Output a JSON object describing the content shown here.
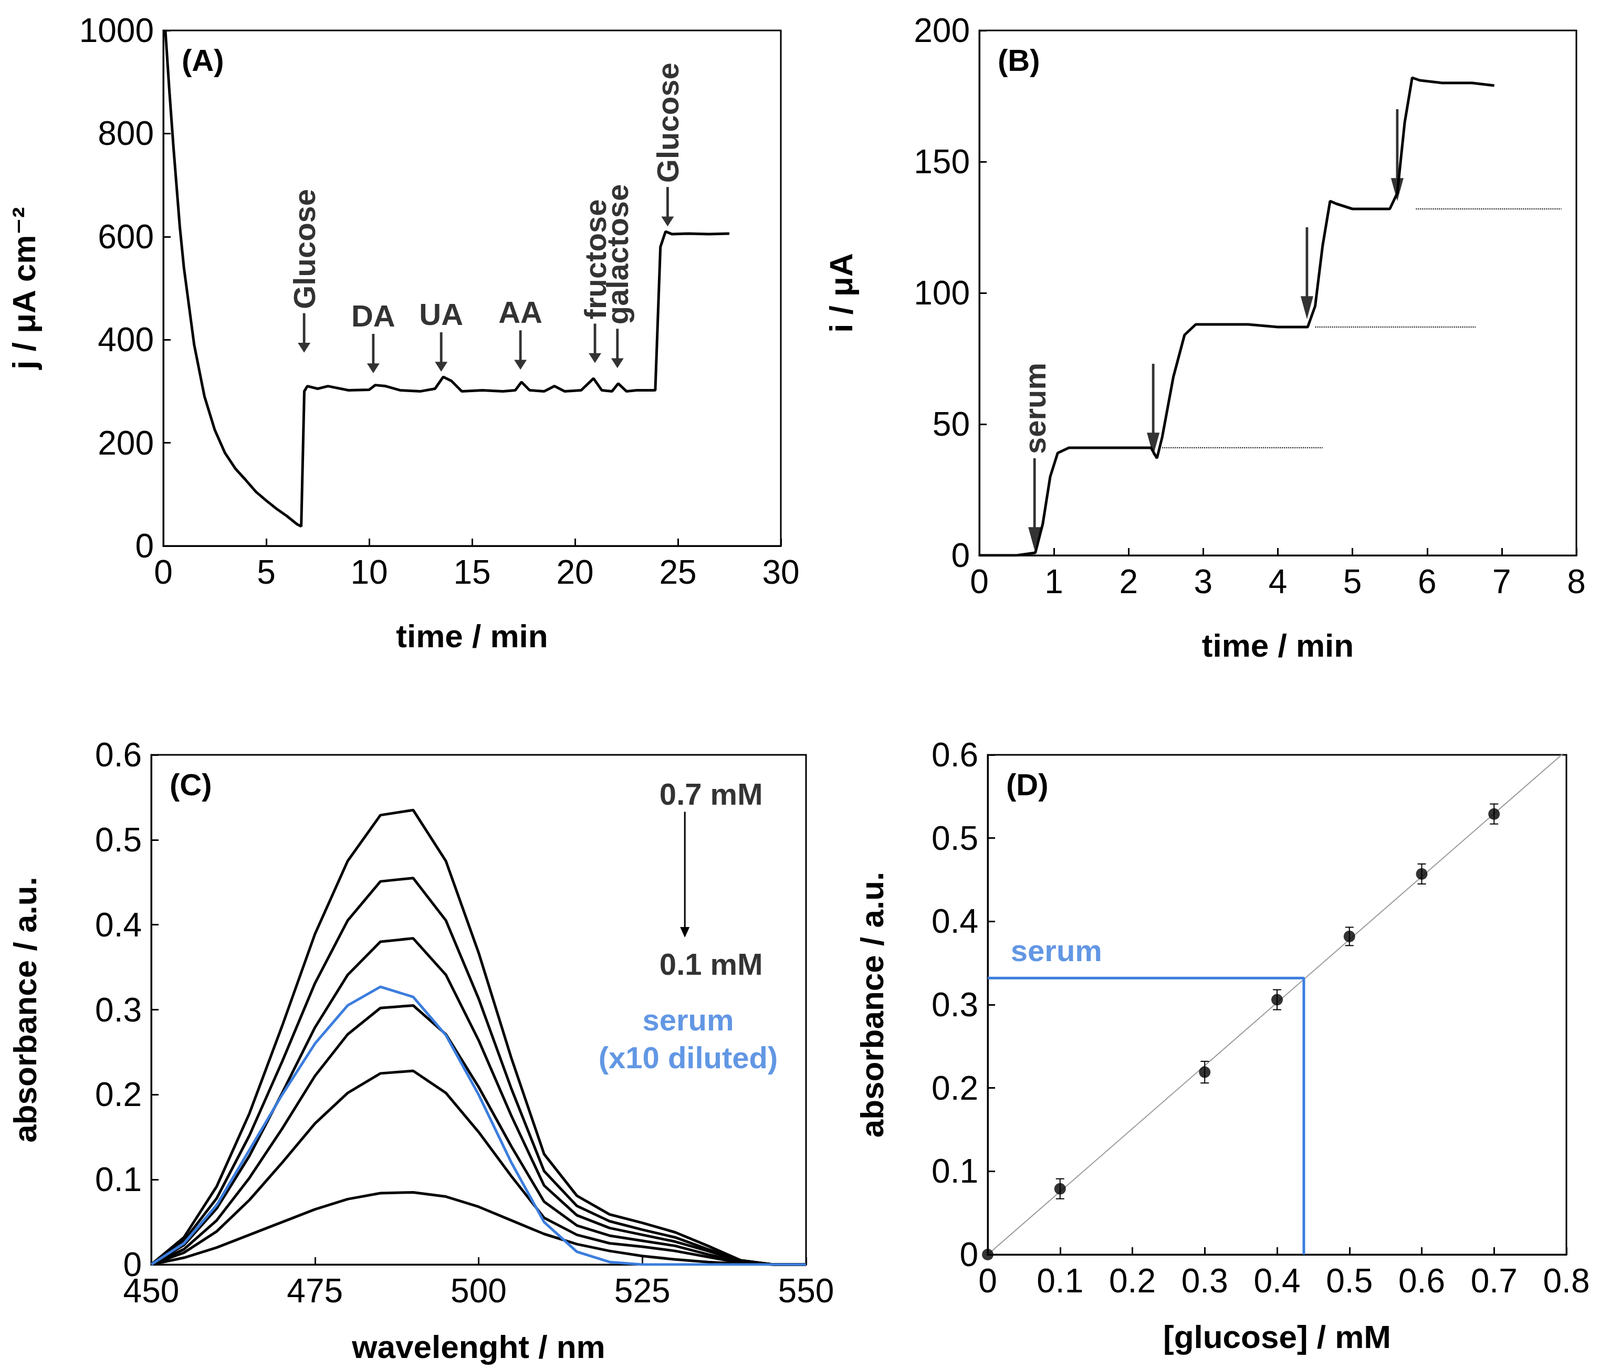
{
  "chart_data": [
    {
      "type": "line",
      "title": "(A)",
      "x_label": "time / min",
      "y_label": "j / μA cm⁻²",
      "xlim": [
        0,
        30
      ],
      "xticks": [
        0,
        5,
        10,
        15,
        20,
        25,
        30
      ],
      "ylim": [
        0,
        1000
      ],
      "yticks": [
        0,
        200,
        400,
        600,
        800,
        1000
      ],
      "grid": false,
      "x": [
        0.1,
        0.3,
        0.5,
        0.8,
        1,
        1.5,
        2,
        2.5,
        3,
        3.5,
        4,
        4.5,
        5,
        5.5,
        6,
        6.5,
        6.7,
        6.85,
        7,
        7.5,
        8,
        9,
        10,
        10.3,
        10.8,
        11.5,
        12.5,
        13.2,
        13.6,
        14,
        14.5,
        15.5,
        16.5,
        17.1,
        17.4,
        17.8,
        18.5,
        19,
        19.5,
        20.3,
        20.9,
        21.3,
        21.8,
        22.1,
        22.5,
        23,
        23.9,
        24.15,
        24.4,
        24.7,
        25.5,
        26.5,
        27.5
      ],
      "series": [
        {
          "color": "#000000",
          "values": [
            1000,
            880,
            770,
            620,
            540,
            390,
            290,
            225,
            180,
            150,
            128,
            105,
            88,
            72,
            58,
            42,
            38,
            300,
            310,
            305,
            310,
            302,
            303,
            312,
            310,
            302,
            300,
            305,
            328,
            320,
            300,
            302,
            300,
            302,
            318,
            302,
            300,
            310,
            300,
            302,
            325,
            302,
            300,
            315,
            300,
            302,
            302,
            580,
            610,
            605,
            606,
            605,
            606
          ]
        }
      ],
      "arrows": [
        {
          "text": "Glucose",
          "x": 6.84,
          "y": 375
        },
        {
          "text": "DA",
          "x": 10.2,
          "y": 335
        },
        {
          "text": "UA",
          "x": 13.5,
          "y": 338
        },
        {
          "text": "AA",
          "x": 17.35,
          "y": 342
        },
        {
          "text": "fructose",
          "x": 20.97,
          "y": 355
        },
        {
          "text": "galactose",
          "x": 22.06,
          "y": 345
        },
        {
          "text": "Glucose",
          "x": 24.5,
          "y": 620
        }
      ]
    },
    {
      "type": "line",
      "title": "(B)",
      "x_label": "time / min",
      "y_label": "i / μA",
      "xlim": [
        0,
        8
      ],
      "xticks": [
        0,
        1,
        2,
        3,
        4,
        5,
        6,
        7,
        8
      ],
      "ylim": [
        0,
        200
      ],
      "yticks": [
        0,
        50,
        100,
        150,
        200
      ],
      "grid": false,
      "x": [
        0,
        0.5,
        0.75,
        0.85,
        0.95,
        1.05,
        1.2,
        1.5,
        2,
        2.3,
        2.38,
        2.45,
        2.6,
        2.75,
        2.9,
        3.2,
        3.6,
        4,
        4.4,
        4.5,
        4.6,
        4.7,
        4.78,
        5,
        5.5,
        5.6,
        5.7,
        5.8,
        5.9,
        6.2,
        6.6,
        6.9
      ],
      "series": [
        {
          "color": "#000000",
          "values": [
            0,
            0,
            1,
            12,
            30,
            39,
            41,
            41,
            41,
            41,
            37,
            45,
            68,
            84,
            88,
            88,
            88,
            87,
            87,
            95,
            118,
            135,
            134,
            132,
            132,
            138,
            165,
            182,
            181,
            180,
            180,
            179
          ]
        }
      ],
      "reference_lines": [
        {
          "y": 41,
          "x": [
            2.45,
            4.6
          ]
        },
        {
          "y": 87,
          "x": [
            4.5,
            6.65
          ]
        },
        {
          "y": 132,
          "x": [
            5.85,
            7.8
          ]
        }
      ],
      "arrows": [
        {
          "text": "serum",
          "x": 0.74,
          "y": 2
        },
        {
          "x": 2.33,
          "y": 38
        },
        {
          "x": 4.39,
          "y": 90
        },
        {
          "x": 5.6,
          "y": 135
        }
      ]
    },
    {
      "type": "line",
      "title": "(C)",
      "x_label": "wavelenght / nm",
      "y_label": "absorbance / a.u.",
      "xlim": [
        450,
        550
      ],
      "xticks": [
        450,
        475,
        500,
        525,
        550
      ],
      "ylim": [
        0,
        0.6
      ],
      "yticks": [
        0,
        0.1,
        0.2,
        0.3,
        0.4,
        0.5,
        0.6
      ],
      "grid": false,
      "x": [
        450,
        455,
        460,
        465,
        470,
        475,
        480,
        485,
        490,
        495,
        500,
        505,
        510,
        515,
        520,
        525,
        530,
        535,
        540,
        545,
        550
      ],
      "series": [
        {
          "color": "#000000",
          "values": [
            0,
            0.032,
            0.092,
            0.178,
            0.281,
            0.389,
            0.475,
            0.529,
            0.535,
            0.475,
            0.367,
            0.243,
            0.13,
            0.081,
            0.059,
            0.049,
            0.038,
            0.022,
            0.005,
            0,
            0
          ]
        },
        {
          "color": "#000000",
          "values": [
            0,
            0.028,
            0.078,
            0.152,
            0.239,
            0.331,
            0.405,
            0.451,
            0.455,
            0.405,
            0.313,
            0.207,
            0.11,
            0.069,
            0.051,
            0.041,
            0.032,
            0.018,
            0.005,
            0,
            0
          ]
        },
        {
          "color": "#000000",
          "values": [
            0,
            0.023,
            0.066,
            0.128,
            0.202,
            0.279,
            0.341,
            0.38,
            0.384,
            0.341,
            0.264,
            0.175,
            0.093,
            0.058,
            0.043,
            0.035,
            0.027,
            0.016,
            0.004,
            0,
            0
          ]
        },
        {
          "color": "#000000",
          "values": [
            0,
            0.018,
            0.052,
            0.102,
            0.16,
            0.222,
            0.271,
            0.302,
            0.305,
            0.271,
            0.209,
            0.139,
            0.074,
            0.046,
            0.034,
            0.028,
            0.022,
            0.012,
            0.003,
            0,
            0
          ]
        },
        {
          "color": "#000000",
          "values": [
            0,
            0.014,
            0.039,
            0.076,
            0.12,
            0.166,
            0.202,
            0.225,
            0.228,
            0.202,
            0.156,
            0.104,
            0.055,
            0.035,
            0.025,
            0.021,
            0.016,
            0.009,
            0.002,
            0,
            0
          ]
        },
        {
          "color": "#000000",
          "values": [
            0,
            0.008,
            0.02,
            0.035,
            0.05,
            0.065,
            0.077,
            0.084,
            0.085,
            0.08,
            0.068,
            0.052,
            0.036,
            0.024,
            0.016,
            0.01,
            0.006,
            0.003,
            0.001,
            0,
            0
          ]
        },
        {
          "color": "#3b7ddd",
          "values": [
            0,
            0.025,
            0.07,
            0.135,
            0.2,
            0.26,
            0.305,
            0.327,
            0.315,
            0.27,
            0.2,
            0.12,
            0.05,
            0.015,
            0.003,
            0,
            0,
            0,
            0,
            0,
            0
          ]
        }
      ],
      "annotations": [
        {
          "text": "0.7 mM",
          "x": 535.5,
          "y": 0.554
        },
        {
          "text": "0.1 mM",
          "x": 535.5,
          "y": 0.354
        },
        {
          "text": "serum\n(x10 diluted)",
          "x": 532,
          "y": 0.266,
          "color": "#3b7ddd"
        }
      ]
    },
    {
      "type": "scatter",
      "title": "(D)",
      "x_label": "[glucose] / mM",
      "y_label": "absorbance / a.u.",
      "xlim": [
        0,
        0.8
      ],
      "xticks": [
        0,
        0.1,
        0.2,
        0.3,
        0.4,
        0.5,
        0.6,
        0.7,
        0.8
      ],
      "ylim": [
        0,
        0.6
      ],
      "yticks": [
        0,
        0.1,
        0.2,
        0.3,
        0.4,
        0.5,
        0.6
      ],
      "grid": false,
      "x": [
        0,
        0.1,
        0.3,
        0.4,
        0.5,
        0.6,
        0.7
      ],
      "series": [
        {
          "color": "#000000",
          "marker": "circle",
          "values": [
            0,
            0.079,
            0.219,
            0.306,
            0.382,
            0.457,
            0.529
          ],
          "errors": [
            0,
            0.012,
            0.013,
            0.012,
            0.011,
            0.012,
            0.012
          ]
        }
      ],
      "fit": {
        "x": [
          0,
          0.8
        ],
        "values": [
          0,
          0.605
        ],
        "color": "#999999"
      },
      "serum": {
        "x": 0.437,
        "y": 0.332,
        "color": "#3b7ddd"
      },
      "annotations": [
        {
          "text": "serum",
          "x": 0.095,
          "y": 0.365,
          "color": "#3b7ddd"
        }
      ]
    }
  ]
}
